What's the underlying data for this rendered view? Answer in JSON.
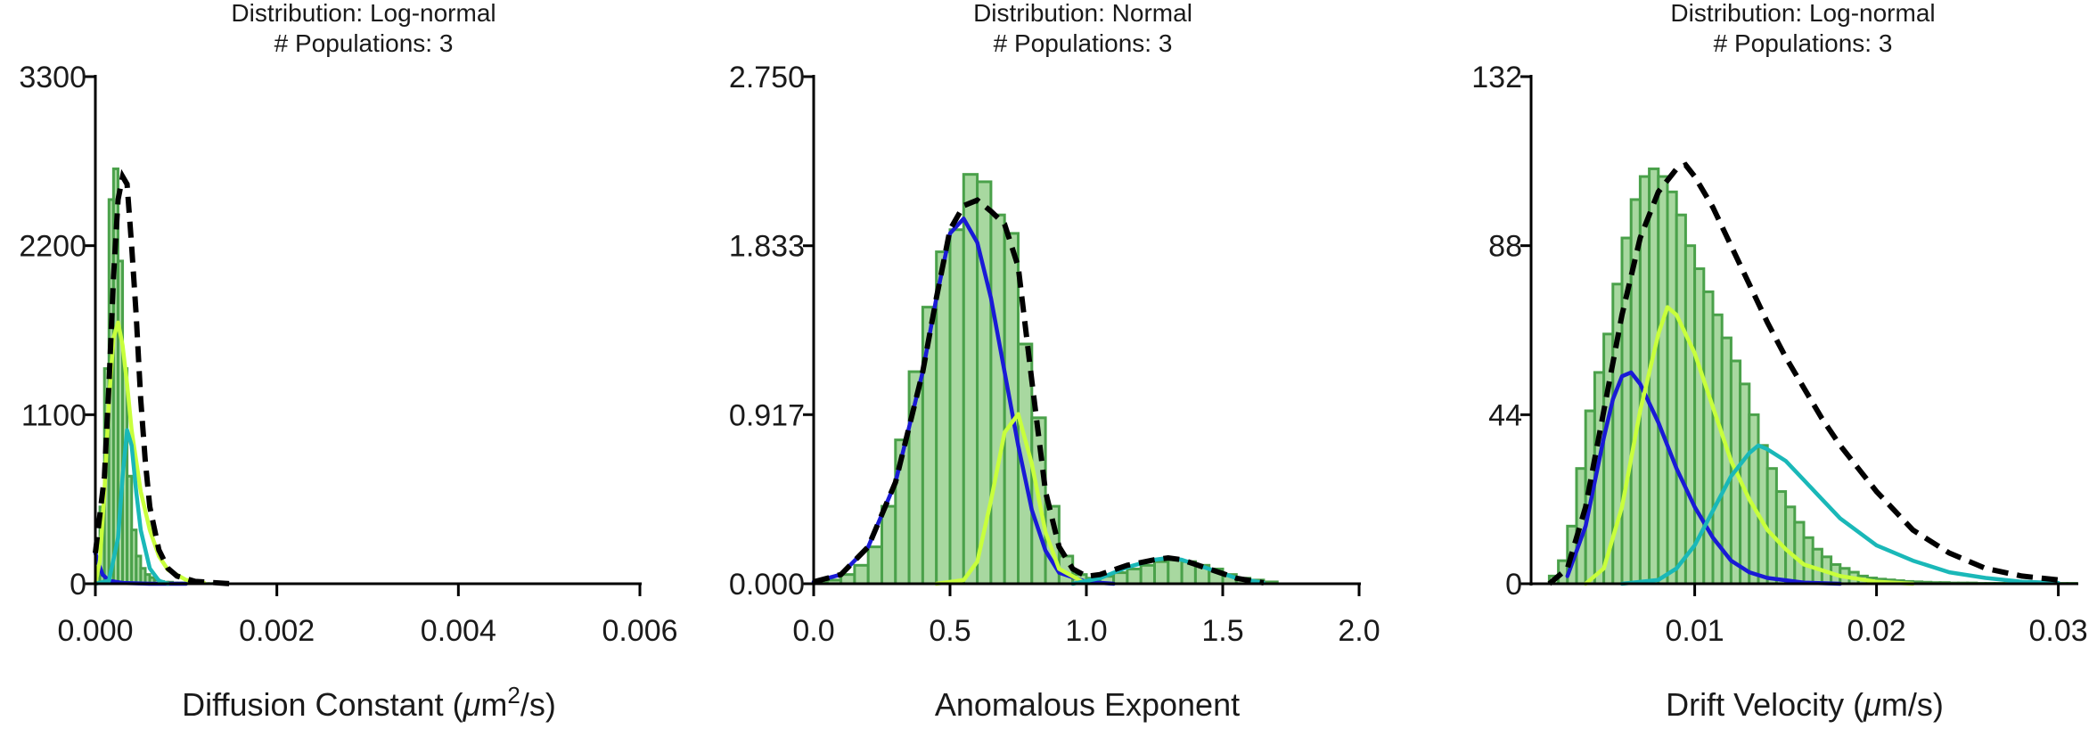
{
  "chart_data": [
    {
      "type": "bar",
      "title_lines": [
        "Distribution: Log-normal",
        "# Populations: 3"
      ],
      "xlabel_pre": "Diffusion Constant (",
      "xlabel_mu": "μ",
      "xlabel_mid": "m",
      "xlabel_sup": "2",
      "xlabel_post": "/s)",
      "xlim": [
        0,
        0.006
      ],
      "ylim": [
        0,
        3300
      ],
      "xticks": [
        "0.000",
        "0.002",
        "0.004",
        "0.006"
      ],
      "xtick_values": [
        0,
        0.002,
        0.004,
        0.006
      ],
      "yticks": [
        "0",
        "1100",
        "2200",
        "3300"
      ],
      "ytick_values": [
        0,
        1100,
        2200,
        3300
      ],
      "bins": {
        "edges_start": 0,
        "width": 5e-05,
        "values": [
          50,
          500,
          1400,
          2500,
          2700,
          2100,
          1400,
          700,
          350,
          180,
          100,
          60,
          40,
          25,
          15,
          10,
          10,
          5,
          5,
          5,
          3,
          2,
          2,
          1,
          1,
          1,
          1,
          0,
          0,
          0
        ]
      },
      "series": [
        {
          "color": "#1a1ad6",
          "x": [
            0,
            3e-05,
            8e-05,
            0.00015,
            0.0003,
            0.0006,
            0.001
          ],
          "y": [
            200,
            140,
            60,
            20,
            5,
            0,
            0
          ]
        },
        {
          "color": "#c8ff3c",
          "x": [
            0,
            5e-05,
            0.0001,
            0.00015,
            0.0002,
            0.00025,
            0.0003,
            0.00035,
            0.0004,
            0.0005,
            0.0006,
            0.0007,
            0.0008,
            0.001,
            0.0012
          ],
          "y": [
            0,
            150,
            600,
            1200,
            1600,
            1700,
            1550,
            1300,
            1000,
            600,
            350,
            180,
            90,
            25,
            5
          ]
        },
        {
          "color": "#1ab8b8",
          "x": [
            0,
            0.00015,
            0.00025,
            0.0003,
            0.00035,
            0.0004,
            0.00045,
            0.0005,
            0.0006,
            0.0007,
            0.0008
          ],
          "y": [
            0,
            20,
            300,
            700,
            1000,
            900,
            600,
            350,
            100,
            20,
            0
          ]
        },
        {
          "color": "#000000",
          "dashed": true,
          "x": [
            0,
            0.0001,
            0.00015,
            0.0002,
            0.00025,
            0.0003,
            0.00035,
            0.0004,
            0.00045,
            0.0005,
            0.00055,
            0.0006,
            0.0007,
            0.0008,
            0.0009,
            0.0011,
            0.0015
          ],
          "y": [
            200,
            700,
            1300,
            2000,
            2500,
            2650,
            2600,
            2200,
            1750,
            1200,
            800,
            500,
            220,
            100,
            50,
            15,
            0
          ]
        }
      ]
    },
    {
      "type": "bar",
      "title_lines": [
        "Distribution: Normal",
        "# Populations: 3"
      ],
      "xlabel_pre": "Anomalous Exponent",
      "xlim": [
        0,
        2
      ],
      "ylim": [
        0,
        2.75
      ],
      "xticks": [
        "0.0",
        "0.5",
        "1.0",
        "1.5",
        "2.0"
      ],
      "xtick_values": [
        0,
        0.5,
        1,
        1.5,
        2
      ],
      "yticks": [
        "0.000",
        "0.917",
        "1.833",
        "2.750"
      ],
      "ytick_values": [
        0,
        0.917,
        1.833,
        2.75
      ],
      "bins": {
        "edges_start": 0,
        "width": 0.05,
        "values": [
          0.005,
          0.02,
          0.05,
          0.1,
          0.2,
          0.42,
          0.78,
          1.15,
          1.5,
          1.8,
          1.92,
          2.22,
          2.18,
          2.0,
          1.9,
          1.3,
          0.9,
          0.42,
          0.15,
          0.05,
          0.03,
          0.04,
          0.06,
          0.08,
          0.1,
          0.12,
          0.13,
          0.12,
          0.1,
          0.08,
          0.05,
          0.03,
          0.02,
          0.01
        ]
      },
      "series": [
        {
          "color": "#1a1ad6",
          "x": [
            0,
            0.1,
            0.2,
            0.3,
            0.4,
            0.45,
            0.5,
            0.55,
            0.6,
            0.65,
            0.7,
            0.75,
            0.8,
            0.85,
            0.9,
            1.0,
            1.1
          ],
          "y": [
            0.01,
            0.05,
            0.2,
            0.55,
            1.15,
            1.55,
            1.9,
            1.98,
            1.85,
            1.55,
            1.15,
            0.75,
            0.4,
            0.18,
            0.06,
            0.01,
            0
          ]
        },
        {
          "color": "#c8ff3c",
          "x": [
            0.45,
            0.55,
            0.6,
            0.65,
            0.7,
            0.75,
            0.8,
            0.85,
            0.9,
            1.0
          ],
          "y": [
            0,
            0.02,
            0.12,
            0.45,
            0.82,
            0.92,
            0.65,
            0.28,
            0.08,
            0
          ]
        },
        {
          "color": "#1ab8b8",
          "x": [
            0.95,
            1.05,
            1.15,
            1.25,
            1.3,
            1.35,
            1.45,
            1.55,
            1.65
          ],
          "y": [
            0,
            0.03,
            0.09,
            0.13,
            0.14,
            0.13,
            0.08,
            0.03,
            0.005
          ]
        },
        {
          "color": "#000000",
          "dashed": true,
          "x": [
            0,
            0.1,
            0.2,
            0.3,
            0.4,
            0.45,
            0.5,
            0.55,
            0.6,
            0.65,
            0.7,
            0.75,
            0.8,
            0.85,
            0.9,
            0.95,
            1.0,
            1.05,
            1.15,
            1.25,
            1.3,
            1.35,
            1.45,
            1.55,
            1.65
          ],
          "y": [
            0.01,
            0.05,
            0.2,
            0.55,
            1.15,
            1.55,
            1.92,
            2.05,
            2.08,
            2.02,
            1.95,
            1.72,
            1.1,
            0.5,
            0.2,
            0.08,
            0.04,
            0.05,
            0.1,
            0.13,
            0.14,
            0.13,
            0.08,
            0.03,
            0.005
          ]
        }
      ]
    },
    {
      "type": "bar",
      "title_lines": [
        "Distribution: Log-normal",
        "# Populations: 3"
      ],
      "xlabel_pre": "Drift Velocity (",
      "xlabel_mu": "μ",
      "xlabel_mid": "m/s)",
      "xlim": [
        0.001,
        0.031
      ],
      "ylim": [
        0,
        132
      ],
      "xticks": [
        "0.01",
        "0.02",
        "0.03"
      ],
      "xtick_values": [
        0.01,
        0.02,
        0.03
      ],
      "yticks": [
        "0",
        "44",
        "88",
        "132"
      ],
      "ytick_values": [
        0,
        44,
        88,
        132
      ],
      "bins": {
        "edges_start": 0.002,
        "width": 0.0005,
        "values": [
          2,
          6,
          15,
          30,
          45,
          55,
          65,
          78,
          90,
          100,
          106,
          108,
          106,
          102,
          96,
          88,
          82,
          76,
          70,
          64,
          58,
          52,
          44,
          36,
          30,
          24,
          20,
          16,
          12,
          9,
          7,
          5,
          4,
          3,
          2,
          1.5,
          1.2,
          1,
          0.8,
          0.6,
          0.5,
          0.4,
          0.3,
          0.3,
          0.2,
          0.2,
          0.2,
          0.1,
          0.1,
          0.1,
          0.1,
          0.1,
          0.1,
          0.1,
          0.1,
          0.1,
          0.1,
          0.1
        ]
      },
      "series": [
        {
          "color": "#1a1ad6",
          "x": [
            0.003,
            0.004,
            0.005,
            0.0055,
            0.006,
            0.0065,
            0.007,
            0.008,
            0.009,
            0.01,
            0.011,
            0.012,
            0.013,
            0.014,
            0.016,
            0.018
          ],
          "y": [
            2,
            15,
            38,
            48,
            54,
            55,
            52,
            42,
            30,
            20,
            12,
            6,
            3,
            1.5,
            0.3,
            0
          ]
        },
        {
          "color": "#c8ff3c",
          "x": [
            0.004,
            0.005,
            0.006,
            0.007,
            0.008,
            0.0085,
            0.009,
            0.01,
            0.011,
            0.012,
            0.013,
            0.014,
            0.015,
            0.016,
            0.018,
            0.02,
            0.022
          ],
          "y": [
            0,
            4,
            20,
            45,
            65,
            72,
            70,
            60,
            46,
            32,
            22,
            14,
            9,
            5,
            2,
            0.5,
            0
          ]
        },
        {
          "color": "#1ab8b8",
          "x": [
            0.006,
            0.008,
            0.009,
            0.01,
            0.011,
            0.012,
            0.013,
            0.0135,
            0.014,
            0.015,
            0.016,
            0.017,
            0.018,
            0.02,
            0.022,
            0.024,
            0.026,
            0.028,
            0.03
          ],
          "y": [
            0,
            1,
            4,
            10,
            19,
            28,
            34,
            36,
            35,
            32,
            27,
            22,
            17,
            10,
            6,
            3,
            1.5,
            0.5,
            0.2
          ]
        },
        {
          "color": "#000000",
          "dashed": true,
          "x": [
            0.002,
            0.003,
            0.004,
            0.005,
            0.006,
            0.007,
            0.008,
            0.009,
            0.0095,
            0.01,
            0.011,
            0.012,
            0.013,
            0.014,
            0.015,
            0.016,
            0.017,
            0.018,
            0.019,
            0.02,
            0.022,
            0.024,
            0.026,
            0.028,
            0.03
          ],
          "y": [
            0,
            4,
            20,
            45,
            70,
            90,
            102,
            108,
            109,
            106,
            98,
            88,
            78,
            68,
            59,
            51,
            43,
            36,
            30,
            24,
            14,
            8,
            4,
            2,
            1
          ]
        }
      ]
    }
  ]
}
